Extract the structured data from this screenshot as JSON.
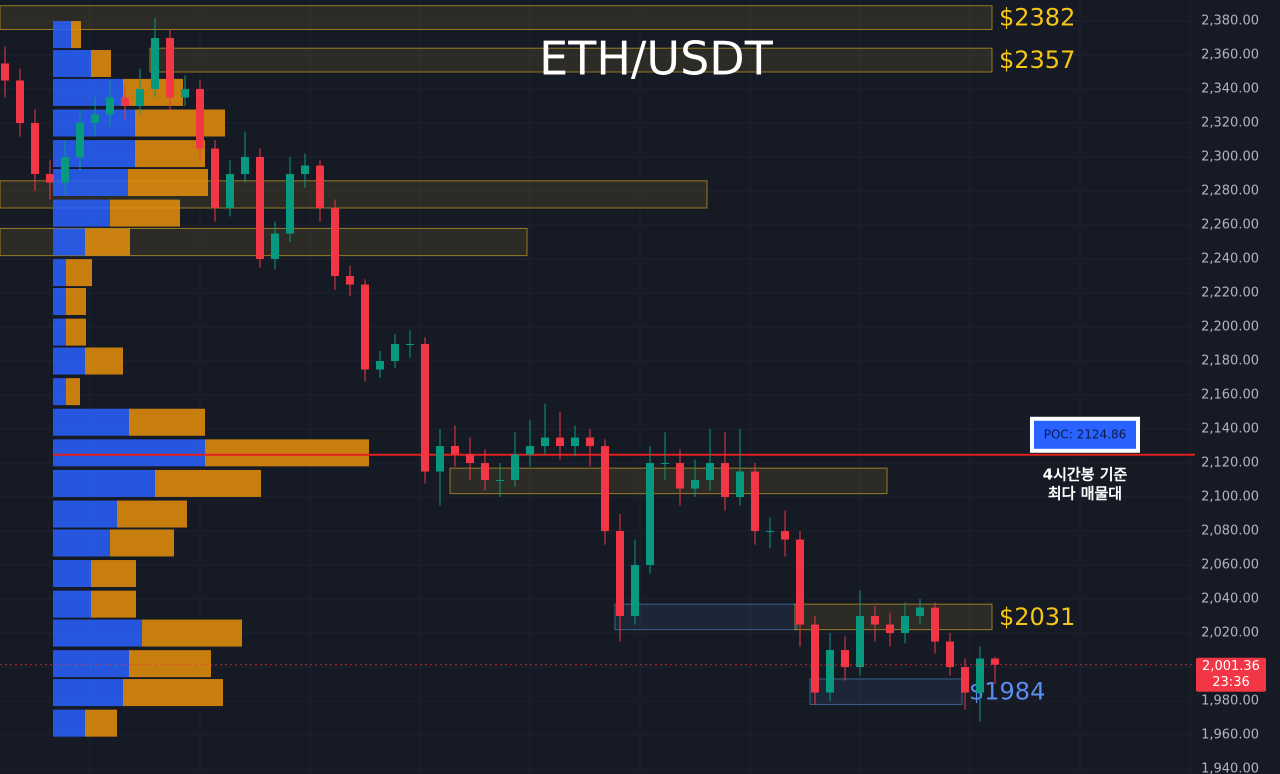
{
  "chart_data": {
    "type": "candlestick",
    "title": "ETH/USDT",
    "open": [
      2355,
      2345,
      2320,
      2290,
      2285,
      2300,
      2320,
      2325,
      2335,
      2330,
      2340,
      2370,
      2335,
      2340,
      2305,
      2270,
      2290,
      2300,
      2240,
      2255,
      2290,
      2295,
      2270,
      2230,
      2225,
      2175,
      2180,
      2190,
      2190,
      2115,
      2130,
      2125,
      2120,
      2110,
      2110,
      2125,
      2130,
      2135,
      2130,
      2135,
      2130,
      2080,
      2030,
      2060,
      2120,
      2120,
      2105,
      2110,
      2120,
      2100,
      2115,
      2080,
      2080,
      2075,
      2025,
      1985,
      2010,
      2000,
      2030,
      2025,
      2020,
      2030,
      2035,
      2015,
      2000,
      1985,
      2005
    ],
    "high": [
      2365,
      2352,
      2328,
      2298,
      2310,
      2328,
      2335,
      2345,
      2342,
      2352,
      2382,
      2375,
      2348,
      2345,
      2310,
      2298,
      2315,
      2305,
      2262,
      2300,
      2302,
      2298,
      2275,
      2236,
      2228,
      2186,
      2196,
      2198,
      2194,
      2140,
      2142,
      2135,
      2128,
      2120,
      2138,
      2145,
      2155,
      2150,
      2142,
      2140,
      2134,
      2090,
      2075,
      2130,
      2138,
      2128,
      2122,
      2140,
      2138,
      2140,
      2120,
      2088,
      2092,
      2080,
      2030,
      2020,
      2018,
      2045,
      2036,
      2032,
      2038,
      2040,
      2038,
      2020,
      2005,
      2012,
      2006
    ],
    "low": [
      2335,
      2312,
      2280,
      2275,
      2278,
      2292,
      2312,
      2318,
      2322,
      2325,
      2335,
      2328,
      2330,
      2298,
      2262,
      2265,
      2285,
      2235,
      2234,
      2250,
      2282,
      2262,
      2222,
      2218,
      2168,
      2170,
      2176,
      2182,
      2108,
      2095,
      2118,
      2110,
      2104,
      2100,
      2106,
      2118,
      2125,
      2122,
      2124,
      2118,
      2072,
      2015,
      2025,
      2055,
      2110,
      2095,
      2100,
      2104,
      2092,
      2095,
      2072,
      2070,
      2065,
      2012,
      1978,
      1980,
      1992,
      1995,
      2015,
      2012,
      2014,
      2025,
      2008,
      1995,
      1975,
      1968,
      1990
    ],
    "close": [
      2345,
      2320,
      2290,
      2285,
      2300,
      2320,
      2325,
      2335,
      2330,
      2340,
      2370,
      2335,
      2340,
      2305,
      2270,
      2290,
      2300,
      2240,
      2255,
      2290,
      2295,
      2270,
      2230,
      2225,
      2175,
      2180,
      2190,
      2190,
      2115,
      2130,
      2125,
      2120,
      2110,
      2110,
      2125,
      2130,
      2135,
      2130,
      2135,
      2130,
      2080,
      2030,
      2060,
      2120,
      2120,
      2105,
      2110,
      2120,
      2100,
      2115,
      2080,
      2080,
      2075,
      2025,
      1985,
      2010,
      2000,
      2030,
      2025,
      2020,
      2030,
      2035,
      2015,
      2000,
      1985,
      2005,
      2001.36
    ],
    "up_color": "#089981",
    "down_color": "#f23645",
    "ylim": [
      1937.1,
      2392.35
    ],
    "yticks": [
      {
        "value": 1940,
        "label": "1,940.00"
      },
      {
        "value": 1960,
        "label": "1,960.00"
      },
      {
        "value": 1980,
        "label": "1,980.00"
      },
      {
        "value": 2000,
        "label": "2,000.00"
      },
      {
        "value": 2020,
        "label": "2,020.00"
      },
      {
        "value": 2040,
        "label": "2,040.00"
      },
      {
        "value": 2060,
        "label": "2,060.00"
      },
      {
        "value": 2080,
        "label": "2,080.00"
      },
      {
        "value": 2100,
        "label": "2,100.00"
      },
      {
        "value": 2120,
        "label": "2,120.00"
      },
      {
        "value": 2140,
        "label": "2,140.00"
      },
      {
        "value": 2160,
        "label": "2,160.00"
      },
      {
        "value": 2180,
        "label": "2,180.00"
      },
      {
        "value": 2200,
        "label": "2,200.00"
      },
      {
        "value": 2220,
        "label": "2,220.00"
      },
      {
        "value": 2240,
        "label": "2,240.00"
      },
      {
        "value": 2260,
        "label": "2,260.00"
      },
      {
        "value": 2280,
        "label": "2,280.00"
      },
      {
        "value": 2300,
        "label": "2,300.00"
      },
      {
        "value": 2320,
        "label": "2,320.00"
      },
      {
        "value": 2340,
        "label": "2,340.00"
      },
      {
        "value": 2360,
        "label": "2,360.00"
      },
      {
        "value": 2380,
        "label": "2,380.00"
      }
    ],
    "grid": true,
    "profile": {
      "prices": [
        2372,
        2355,
        2338,
        2320,
        2302,
        2285,
        2267,
        2250,
        2232,
        2215,
        2197,
        2180,
        2162,
        2144,
        2126,
        2108,
        2090,
        2073,
        2055,
        2037,
        2020,
        2002,
        1985,
        1967
      ],
      "buy": [
        18,
        38,
        70,
        82,
        82,
        75,
        57,
        32,
        13,
        13,
        13,
        32,
        13,
        76,
        152,
        102,
        64,
        57,
        38,
        38,
        89,
        76,
        70,
        32
      ],
      "sell": [
        10,
        20,
        60,
        90,
        70,
        80,
        70,
        45,
        26,
        20,
        20,
        38,
        14,
        76,
        164,
        106,
        70,
        64,
        45,
        45,
        100,
        82,
        100,
        32
      ],
      "buy_color": "#2962ff",
      "sell_color": "#e8900c"
    },
    "zones": [
      {
        "low": 2375,
        "high": 2389,
        "from": 0,
        "to": 66,
        "color": "#c9a227",
        "label": "$2382"
      },
      {
        "low": 2350,
        "high": 2364,
        "from": 10,
        "to": 66,
        "color": "#c9a227",
        "label": "$2357"
      },
      {
        "low": 2270,
        "high": 2286,
        "from": 0,
        "to": 47,
        "color": "#c9a227"
      },
      {
        "low": 2242,
        "high": 2258,
        "from": 0,
        "to": 35,
        "color": "#c9a227"
      },
      {
        "low": 2102,
        "high": 2117,
        "from": 30,
        "to": 59,
        "color": "#c9a227"
      },
      {
        "low": 2022,
        "high": 2037,
        "from": 41,
        "to": 53,
        "color": "#4a7fb0"
      },
      {
        "low": 2022,
        "high": 2037,
        "from": 53,
        "to": 66,
        "color": "#c9a227",
        "label": "$2031"
      },
      {
        "low": 1978,
        "high": 1993,
        "from": 54,
        "to": 64,
        "color": "#4a7fb0",
        "label": "$1984"
      }
    ],
    "poc": {
      "value": 2124.86,
      "label": "POC: 2124.86"
    },
    "poc_note": [
      "4시간봉 기준",
      "최다 매물대"
    ],
    "last_price": {
      "value": 2001.36,
      "label": "2,001.36"
    },
    "countdown": "23:36"
  }
}
